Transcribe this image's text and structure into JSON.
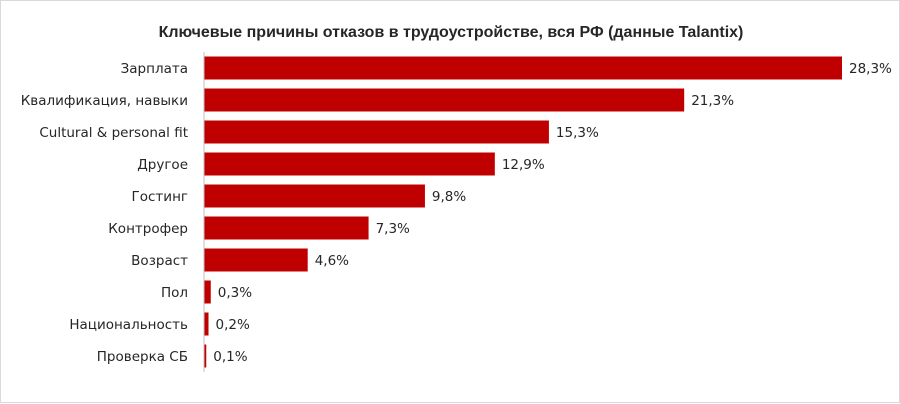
{
  "chart_data": {
    "type": "bar",
    "orientation": "horizontal",
    "title": "Ключевые причины отказов в трудоустройстве, вся РФ (данные Talantix)",
    "categories": [
      "Зарплата",
      "Квалификация, навыки",
      "Cultural & personal fit",
      "Другое",
      "Гостинг",
      "Контрофер",
      "Возраст",
      "Пол",
      "Национальность",
      "Проверка СБ"
    ],
    "values": [
      28.3,
      21.3,
      15.3,
      12.9,
      9.8,
      7.3,
      4.6,
      0.3,
      0.2,
      0.1
    ],
    "value_labels": [
      "28,3%",
      "21,3%",
      "15,3%",
      "12,9%",
      "9,8%",
      "7,3%",
      "4,6%",
      "0,3%",
      "0,2%",
      "0,1%"
    ],
    "unit": "%",
    "xlim": [
      0,
      28.3
    ],
    "grid": false,
    "legend": "none",
    "bar_color": "#C00000"
  }
}
